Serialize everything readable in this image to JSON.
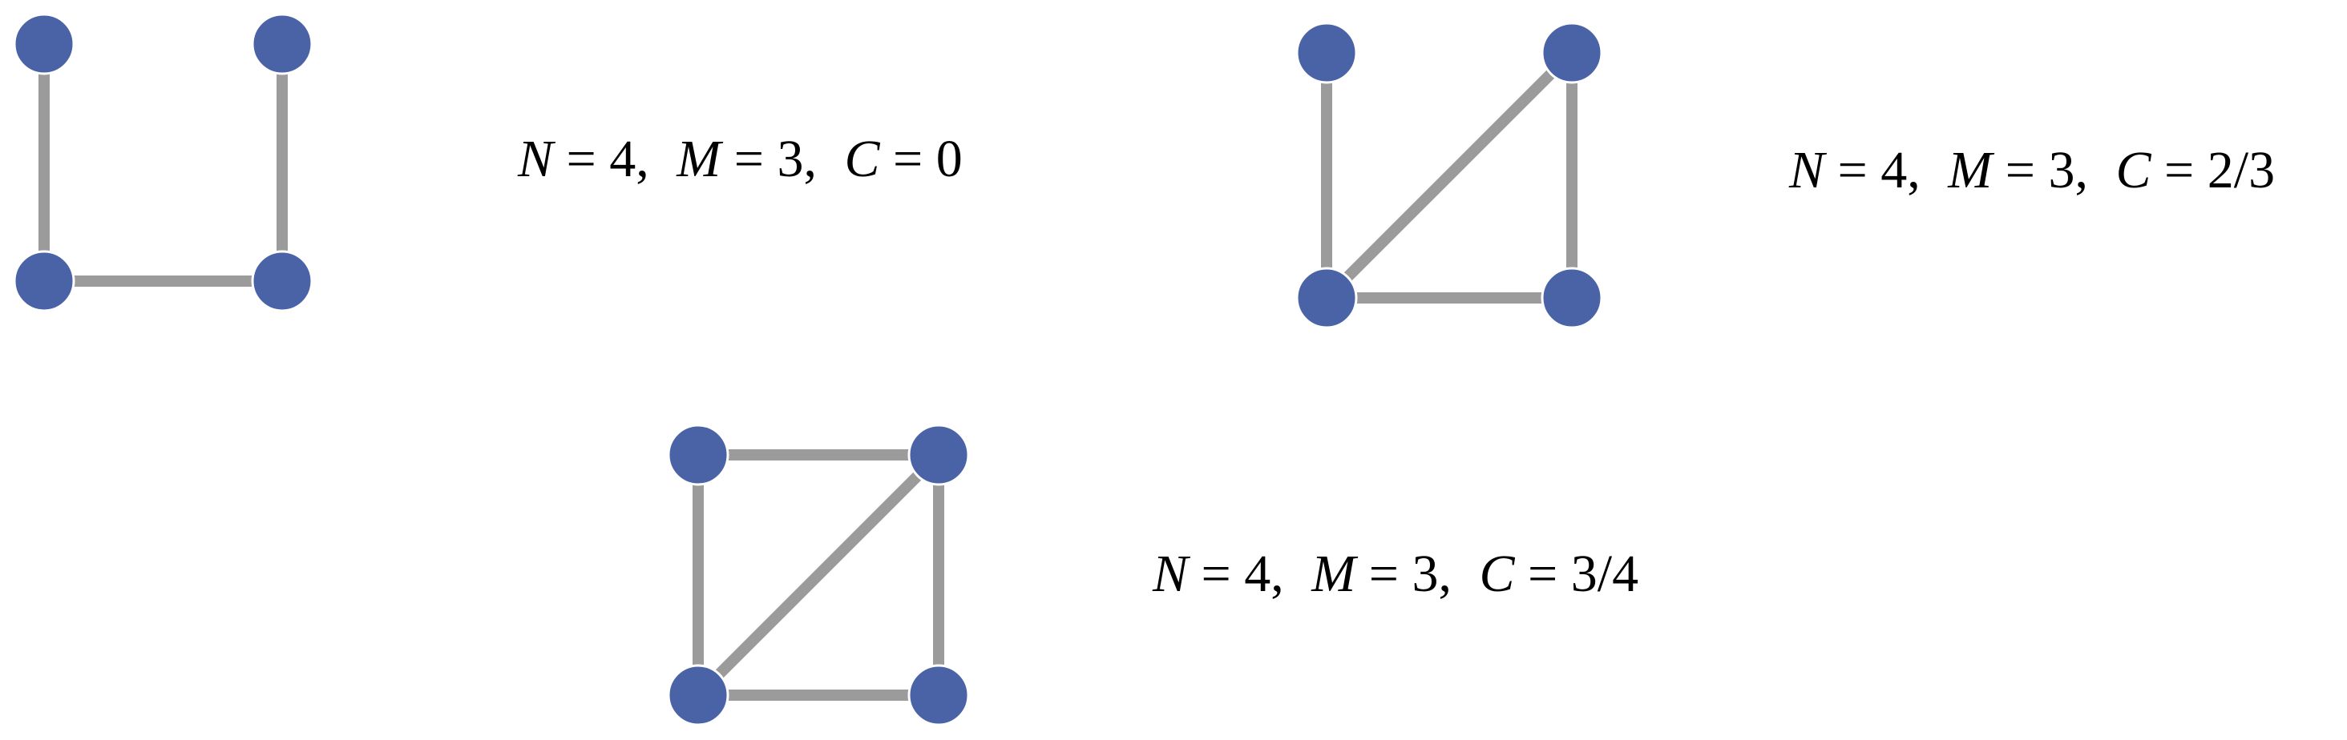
{
  "colors": {
    "node": "#4a62a6",
    "edge": "#9b9b9b",
    "background": "#ffffff",
    "text": "#000000"
  },
  "graphs": [
    {
      "label": "graph-1",
      "formula": {
        "n_symbol": "N",
        "n_value": "4",
        "m_symbol": "M",
        "m_value": "3",
        "c_symbol": "C",
        "c_value": "0"
      }
    },
    {
      "label": "graph-2",
      "formula": {
        "n_symbol": "N",
        "n_value": "4",
        "m_symbol": "M",
        "m_value": "3",
        "c_symbol": "C",
        "c_value": "2/3"
      }
    },
    {
      "label": "graph-3",
      "formula": {
        "n_symbol": "N",
        "n_value": "4",
        "m_symbol": "M",
        "m_value": "3",
        "c_symbol": "C",
        "c_value": "3/4"
      }
    }
  ]
}
